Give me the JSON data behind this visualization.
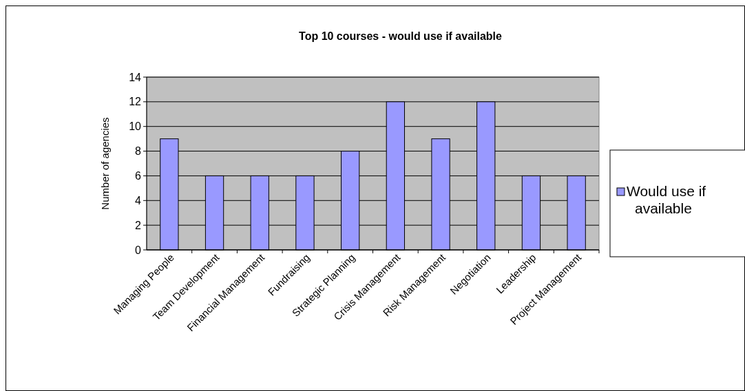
{
  "chart_data": {
    "type": "bar",
    "title": "Top 10 courses - would use if available",
    "ylabel": "Number of agencies",
    "categories": [
      "Managing People",
      "Team Development",
      "Financial Management",
      "Fundraising",
      "Strategic Planning",
      "Crisis Management",
      "Risk Management",
      "Negotiation",
      "Leadership",
      "Project Management"
    ],
    "series": [
      {
        "name": "Would use if available",
        "color": "#9999ff",
        "values": [
          9,
          6,
          6,
          6,
          8,
          12,
          9,
          12,
          6,
          6
        ]
      }
    ],
    "ylim": [
      0,
      14
    ],
    "yticks": [
      0,
      2,
      4,
      6,
      8,
      10,
      12,
      14
    ],
    "grid": "y",
    "legend": "right"
  }
}
